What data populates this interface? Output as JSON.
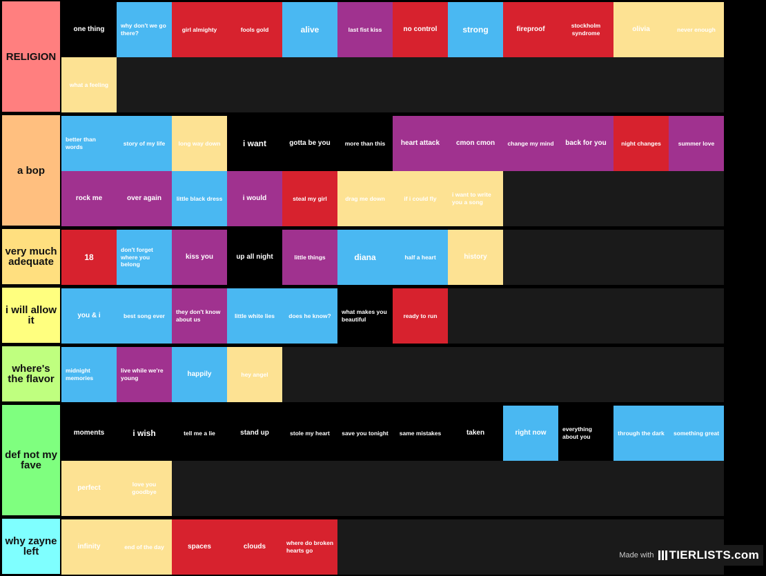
{
  "tiers": [
    {
      "label": "RELIGION",
      "color": "#ff7f7f",
      "items": [
        {
          "text": "one thing",
          "color": "#000000",
          "size": "m"
        },
        {
          "text": "why don't we go there?",
          "color": "#4ab8f2",
          "size": "s",
          "align": "left"
        },
        {
          "text": "girl almighty",
          "color": "#d7222e",
          "size": "s"
        },
        {
          "text": "fools gold",
          "color": "#d7222e",
          "size": "s"
        },
        {
          "text": "alive",
          "color": "#4ab8f2",
          "size": "l"
        },
        {
          "text": "last fist kiss",
          "color": "#a0328f",
          "size": "s"
        },
        {
          "text": "no control",
          "color": "#d7222e",
          "size": "m"
        },
        {
          "text": "strong",
          "color": "#4ab8f2",
          "size": "l"
        },
        {
          "text": "fireproof",
          "color": "#d7222e",
          "size": "m"
        },
        {
          "text": "stockholm syndrome",
          "color": "#d7222e",
          "size": "s"
        },
        {
          "text": "olivia",
          "color": "#fde293",
          "size": "m"
        },
        {
          "text": "never enough",
          "color": "#fde293",
          "size": "s"
        },
        {
          "text": "what a feeling",
          "color": "#fde293",
          "size": "s"
        }
      ]
    },
    {
      "label": "a bop",
      "color": "#ffbf7f",
      "items": [
        {
          "text": "better than words",
          "color": "#4ab8f2",
          "size": "s",
          "align": "left"
        },
        {
          "text": "story of my life",
          "color": "#4ab8f2",
          "size": "s"
        },
        {
          "text": "long way down",
          "color": "#fde293",
          "size": "s"
        },
        {
          "text": "i want",
          "color": "#000000",
          "size": "l"
        },
        {
          "text": "gotta be you",
          "color": "#000000",
          "size": "m"
        },
        {
          "text": "more than this",
          "color": "#000000",
          "size": "s"
        },
        {
          "text": "heart attack",
          "color": "#a0328f",
          "size": "m"
        },
        {
          "text": "cmon cmon",
          "color": "#a0328f",
          "size": "m"
        },
        {
          "text": "change my mind",
          "color": "#a0328f",
          "size": "s"
        },
        {
          "text": "back for you",
          "color": "#a0328f",
          "size": "m"
        },
        {
          "text": "night changes",
          "color": "#d7222e",
          "size": "s"
        },
        {
          "text": "summer love",
          "color": "#a0328f",
          "size": "s"
        },
        {
          "text": "rock me",
          "color": "#a0328f",
          "size": "m"
        },
        {
          "text": "over again",
          "color": "#a0328f",
          "size": "m"
        },
        {
          "text": "little black dress",
          "color": "#4ab8f2",
          "size": "s"
        },
        {
          "text": "i would",
          "color": "#a0328f",
          "size": "m"
        },
        {
          "text": "steal my girl",
          "color": "#d7222e",
          "size": "s"
        },
        {
          "text": "drag me down",
          "color": "#fde293",
          "size": "s"
        },
        {
          "text": "if i could fly",
          "color": "#fde293",
          "size": "s"
        },
        {
          "text": "i want to write you a song",
          "color": "#fde293",
          "size": "s",
          "align": "left"
        }
      ]
    },
    {
      "label": "very much adequate",
      "color": "#ffdf7f",
      "items": [
        {
          "text": "18",
          "color": "#d7222e",
          "size": "l"
        },
        {
          "text": "don't forget where you belong",
          "color": "#4ab8f2",
          "size": "s",
          "align": "left"
        },
        {
          "text": "kiss you",
          "color": "#a0328f",
          "size": "m"
        },
        {
          "text": "up all night",
          "color": "#000000",
          "size": "m"
        },
        {
          "text": "little things",
          "color": "#a0328f",
          "size": "s"
        },
        {
          "text": "diana",
          "color": "#4ab8f2",
          "size": "l"
        },
        {
          "text": "half a heart",
          "color": "#4ab8f2",
          "size": "s"
        },
        {
          "text": "history",
          "color": "#fde293",
          "size": "m"
        }
      ]
    },
    {
      "label": "i will allow it",
      "color": "#ffff7f",
      "items": [
        {
          "text": "you & i",
          "color": "#4ab8f2",
          "size": "m"
        },
        {
          "text": "best song ever",
          "color": "#4ab8f2",
          "size": "s"
        },
        {
          "text": "they don't know about us",
          "color": "#a0328f",
          "size": "s",
          "align": "left"
        },
        {
          "text": "little white lies",
          "color": "#4ab8f2",
          "size": "s"
        },
        {
          "text": "does he know?",
          "color": "#4ab8f2",
          "size": "s"
        },
        {
          "text": "what makes you beautiful",
          "color": "#000000",
          "size": "s",
          "align": "left"
        },
        {
          "text": "ready to run",
          "color": "#d7222e",
          "size": "s"
        }
      ]
    },
    {
      "label": "where's the flavor",
      "color": "#bfff7f",
      "items": [
        {
          "text": "midnight memories",
          "color": "#4ab8f2",
          "size": "s",
          "align": "left"
        },
        {
          "text": "live while we're young",
          "color": "#a0328f",
          "size": "s",
          "align": "left"
        },
        {
          "text": "happily",
          "color": "#4ab8f2",
          "size": "m"
        },
        {
          "text": "hey angel",
          "color": "#fde293",
          "size": "s"
        }
      ]
    },
    {
      "label": "def not my fave",
      "color": "#7fff7f",
      "items": [
        {
          "text": "moments",
          "color": "#000000",
          "size": "m"
        },
        {
          "text": "i wish",
          "color": "#000000",
          "size": "l"
        },
        {
          "text": "tell me a lie",
          "color": "#000000",
          "size": "s"
        },
        {
          "text": "stand up",
          "color": "#000000",
          "size": "m"
        },
        {
          "text": "stole my heart",
          "color": "#000000",
          "size": "s"
        },
        {
          "text": "save you tonight",
          "color": "#000000",
          "size": "s"
        },
        {
          "text": "same mistakes",
          "color": "#000000",
          "size": "s"
        },
        {
          "text": "taken",
          "color": "#000000",
          "size": "m"
        },
        {
          "text": "right now",
          "color": "#4ab8f2",
          "size": "m"
        },
        {
          "text": "everything about you",
          "color": "#000000",
          "size": "s",
          "align": "left"
        },
        {
          "text": "through the dark",
          "color": "#4ab8f2",
          "size": "s"
        },
        {
          "text": "something great",
          "color": "#4ab8f2",
          "size": "s"
        },
        {
          "text": "perfect",
          "color": "#fde293",
          "size": "m"
        },
        {
          "text": "love you goodbye",
          "color": "#fde293",
          "size": "s"
        }
      ]
    },
    {
      "label": "why zayne left",
      "color": "#7fffff",
      "items": [
        {
          "text": "infinity",
          "color": "#fde293",
          "size": "m"
        },
        {
          "text": "end of the day",
          "color": "#fde293",
          "size": "s"
        },
        {
          "text": "spaces",
          "color": "#d7222e",
          "size": "m"
        },
        {
          "text": "clouds",
          "color": "#d7222e",
          "size": "m"
        },
        {
          "text": "where do broken hearts go",
          "color": "#d7222e",
          "size": "s",
          "align": "left"
        }
      ]
    }
  ],
  "watermark": {
    "made_with": "Made with",
    "brand": "TIERLISTS.com"
  }
}
